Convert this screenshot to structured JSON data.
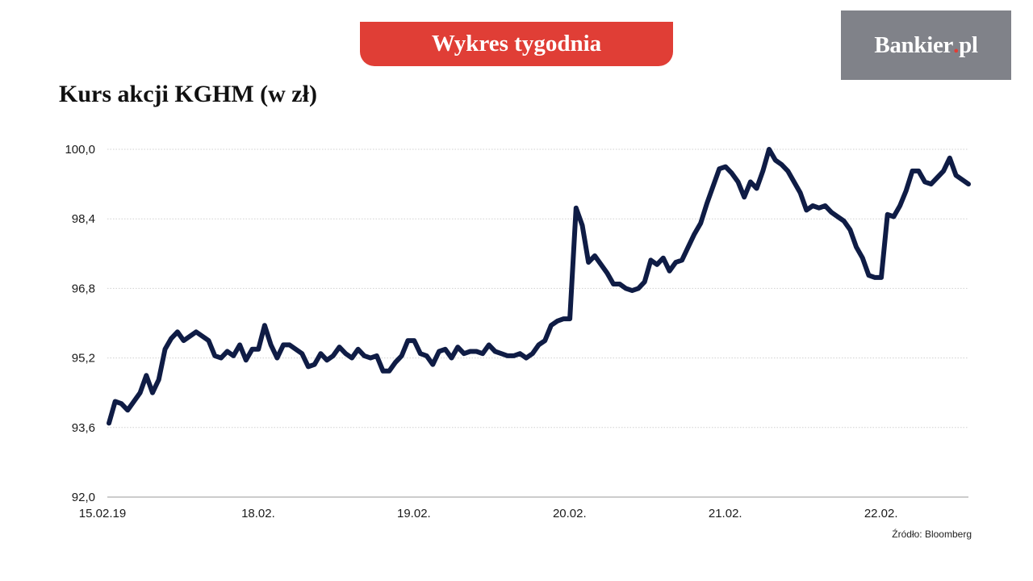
{
  "header": {
    "banner": "Wykres tygodnia",
    "logo_main": "Bankier",
    "logo_dot": ".",
    "logo_suffix": "pl"
  },
  "colors": {
    "banner": "#e03e36",
    "logo_bg": "#808289",
    "line": "#0f1c45",
    "grid": "#d0d0d0"
  },
  "source": "Źródło: Bloomberg",
  "chart_data": {
    "type": "line",
    "title": "Kurs akcji KGHM (w zł)",
    "xlabel": "",
    "ylabel": "",
    "ylim": [
      92.0,
      100.0
    ],
    "yticks": [
      92.0,
      93.6,
      95.2,
      96.8,
      98.4,
      100.0
    ],
    "ytick_labels": [
      "92,0",
      "93,6",
      "95,2",
      "96,8",
      "98,4",
      "100,0"
    ],
    "xticks": [
      {
        "label": "15.02.19",
        "index": 0
      },
      {
        "label": "18.02.",
        "index": 25
      },
      {
        "label": "19.02.",
        "index": 50
      },
      {
        "label": "20.02.",
        "index": 75
      },
      {
        "label": "21.02.",
        "index": 100
      },
      {
        "label": "22.02.",
        "index": 125
      }
    ],
    "grid": "horizontal",
    "series": [
      {
        "values": [
          93.7,
          94.2,
          94.15,
          94.0,
          94.2,
          94.4,
          94.8,
          94.4,
          94.7,
          95.4,
          95.65,
          95.8,
          95.6,
          95.7,
          95.8,
          95.7,
          95.6,
          95.25,
          95.2,
          95.35,
          95.25,
          95.5,
          95.15,
          95.4,
          95.4,
          95.95,
          95.5,
          95.2,
          95.5,
          95.5,
          95.4,
          95.3,
          95.0,
          95.05,
          95.3,
          95.15,
          95.25,
          95.45,
          95.3,
          95.2,
          95.4,
          95.25,
          95.2,
          95.25,
          94.9,
          94.9,
          95.1,
          95.25,
          95.6,
          95.6,
          95.3,
          95.25,
          95.05,
          95.35,
          95.4,
          95.2,
          95.45,
          95.3,
          95.35,
          95.35,
          95.3,
          95.5,
          95.35,
          95.3,
          95.25,
          95.25,
          95.3,
          95.2,
          95.3,
          95.5,
          95.6,
          95.95,
          96.05,
          96.1,
          96.1,
          98.65,
          98.25,
          97.4,
          97.55,
          97.35,
          97.15,
          96.9,
          96.9,
          96.8,
          96.75,
          96.8,
          96.95,
          97.45,
          97.35,
          97.5,
          97.2,
          97.4,
          97.45,
          97.75,
          98.05,
          98.3,
          98.75,
          99.15,
          99.55,
          99.6,
          99.45,
          99.25,
          98.9,
          99.25,
          99.1,
          99.5,
          100.0,
          99.75,
          99.65,
          99.5,
          99.25,
          99.0,
          98.6,
          98.7,
          98.65,
          98.7,
          98.55,
          98.45,
          98.35,
          98.15,
          97.75,
          97.5,
          97.1,
          97.05,
          97.05,
          98.5,
          98.45,
          98.7,
          99.05,
          99.5,
          99.5,
          99.25,
          99.2,
          99.35,
          99.5,
          99.8,
          99.4,
          99.3,
          99.2
        ]
      }
    ]
  }
}
